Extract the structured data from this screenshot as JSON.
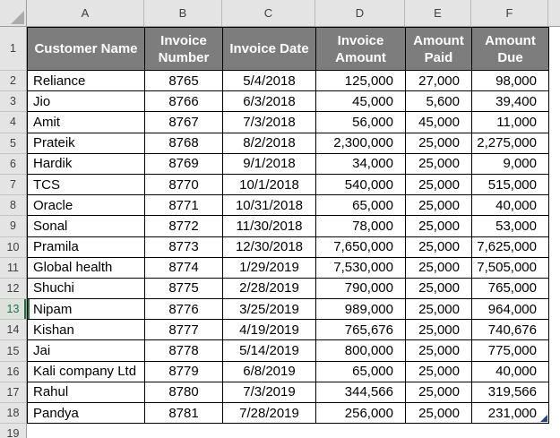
{
  "grid": {
    "column_letters": [
      "A",
      "B",
      "C",
      "D",
      "E",
      "F"
    ],
    "row_numbers": [
      "1",
      "2",
      "3",
      "4",
      "5",
      "6",
      "7",
      "8",
      "9",
      "10",
      "11",
      "12",
      "13",
      "14",
      "15",
      "16",
      "17",
      "18",
      "19"
    ]
  },
  "table": {
    "headers": [
      "Customer Name",
      "Invoice Number",
      "Invoice Date",
      "Invoice Amount",
      "Amount Paid",
      "Amount Due"
    ],
    "rows": [
      [
        "Reliance",
        "8765",
        "5/4/2018",
        "125,000",
        "27,000",
        "98,000"
      ],
      [
        "Jio",
        "8766",
        "6/3/2018",
        "45,000",
        "5,600",
        "39,400"
      ],
      [
        "Amit",
        "8767",
        "7/3/2018",
        "56,000",
        "45,000",
        "11,000"
      ],
      [
        "Prateik",
        "8768",
        "8/2/2018",
        "2,300,000",
        "25,000",
        "2,275,000"
      ],
      [
        "Hardik",
        "8769",
        "9/1/2018",
        "34,000",
        "25,000",
        "9,000"
      ],
      [
        "TCS",
        "8770",
        "10/1/2018",
        "540,000",
        "25,000",
        "515,000"
      ],
      [
        "Oracle",
        "8771",
        "10/31/2018",
        "65,000",
        "25,000",
        "40,000"
      ],
      [
        "Sonal",
        "8772",
        "11/30/2018",
        "78,000",
        "25,000",
        "53,000"
      ],
      [
        "Pramila",
        "8773",
        "12/30/2018",
        "7,650,000",
        "25,000",
        "7,625,000"
      ],
      [
        "Global health",
        "8774",
        "1/29/2019",
        "7,530,000",
        "25,000",
        "7,505,000"
      ],
      [
        "Shuchi",
        "8775",
        "2/28/2019",
        "790,000",
        "25,000",
        "765,000"
      ],
      [
        "Nipam",
        "8776",
        "3/25/2019",
        "989,000",
        "25,000",
        "964,000"
      ],
      [
        "Kishan",
        "8777",
        "4/19/2019",
        "765,676",
        "25,000",
        "740,676"
      ],
      [
        "Jai",
        "8778",
        "5/14/2019",
        "800,000",
        "25,000",
        "775,000"
      ],
      [
        "Kali company Ltd",
        "8779",
        "6/8/2019",
        "65,000",
        "25,000",
        "40,000"
      ],
      [
        "Rahul",
        "8780",
        "7/3/2019",
        "344,566",
        "25,000",
        "319,566"
      ],
      [
        "Pandya",
        "8781",
        "7/28/2019",
        "256,000",
        "25,000",
        "231,000"
      ]
    ],
    "selected_cell": {
      "row_number": "13",
      "column": "A"
    }
  },
  "colors": {
    "table_header_bg": "#7d7d7d",
    "selection_green": "#217346",
    "resize_handle_blue": "#24478f",
    "header_strip_bg": "#e4e4e4"
  }
}
